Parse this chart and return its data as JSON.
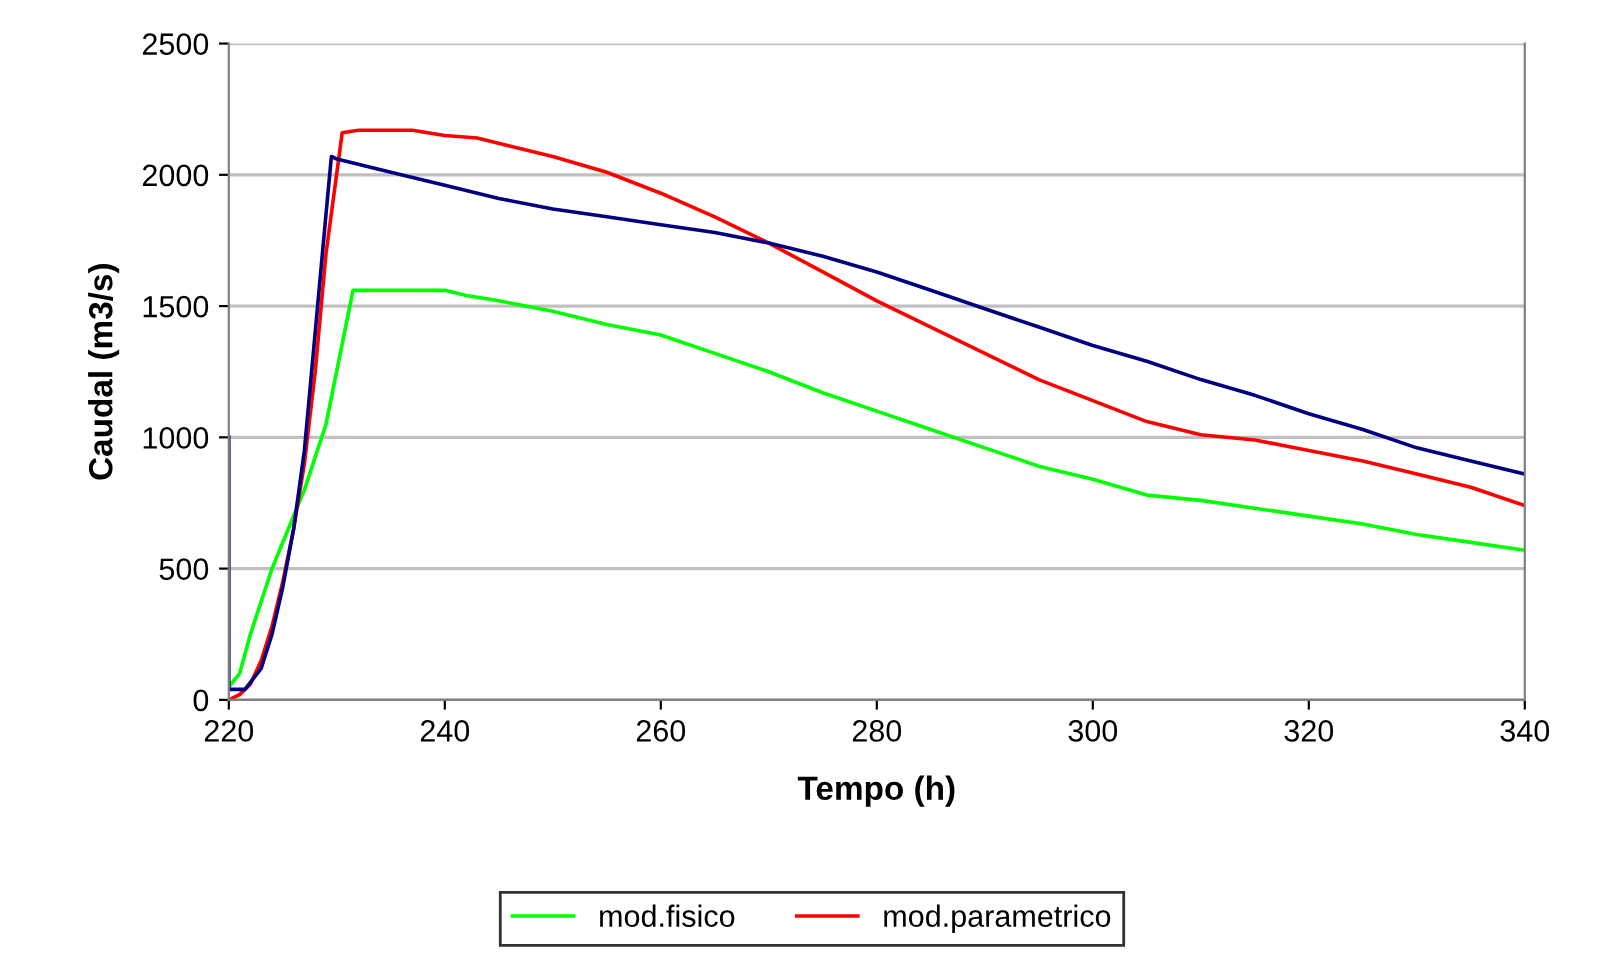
{
  "chart_data": {
    "type": "line",
    "xlabel": "Tempo (h)",
    "ylabel": "Caudal (m3/s)",
    "xlim": [
      220,
      340
    ],
    "xticks": [
      220,
      240,
      260,
      280,
      300,
      320,
      340
    ],
    "ylim": [
      0,
      2500
    ],
    "yticks": [
      0,
      500,
      1000,
      1500,
      2000,
      2500
    ],
    "grid": "y",
    "legend": "bottom",
    "marker": "none",
    "line_style": "solid",
    "series": [
      {
        "name": "mod.fisico",
        "color": "#00ff00",
        "x": [
          220,
          221,
          222,
          224,
          225.5,
          227,
          229,
          231.5,
          240,
          242,
          245,
          250,
          255,
          260,
          265,
          270,
          275,
          280,
          285,
          290,
          295,
          300,
          305,
          310,
          315,
          320,
          325,
          330,
          335,
          340
        ],
        "values": [
          50,
          100,
          250,
          500,
          650,
          800,
          1050,
          1560,
          1560,
          1540,
          1520,
          1480,
          1430,
          1390,
          1320,
          1250,
          1170,
          1100,
          1030,
          960,
          890,
          840,
          780,
          760,
          730,
          700,
          670,
          630,
          600,
          570
        ]
      },
      {
        "name": "mod.parametrico",
        "color": "#ff0000",
        "x": [
          220,
          221,
          222,
          223,
          224,
          225,
          226,
          227,
          228,
          229,
          230.5,
          232,
          237,
          240,
          243,
          246,
          250,
          255,
          260,
          265,
          270,
          275,
          280,
          285,
          290,
          295,
          300,
          305,
          310,
          315,
          320,
          325,
          330,
          335,
          340
        ],
        "values": [
          0,
          20,
          60,
          150,
          280,
          450,
          650,
          900,
          1250,
          1700,
          2160,
          2170,
          2170,
          2150,
          2140,
          2110,
          2070,
          2010,
          1930,
          1840,
          1740,
          1630,
          1520,
          1420,
          1320,
          1220,
          1140,
          1060,
          1010,
          990,
          950,
          910,
          860,
          810,
          740
        ]
      },
      {
        "color": "#000080",
        "x": [
          220,
          220,
          221.5,
          223,
          224,
          225,
          226,
          227,
          228,
          229,
          229.5,
          230,
          235,
          240,
          245,
          250,
          255,
          260,
          265,
          270,
          275,
          280,
          285,
          290,
          295,
          300,
          305,
          310,
          315,
          320,
          325,
          330,
          335,
          340
        ],
        "values": [
          1000,
          40,
          40,
          120,
          250,
          430,
          650,
          950,
          1400,
          1850,
          2070,
          2060,
          2010,
          1960,
          1910,
          1870,
          1840,
          1810,
          1780,
          1740,
          1690,
          1630,
          1560,
          1490,
          1420,
          1350,
          1290,
          1220,
          1160,
          1090,
          1030,
          960,
          910,
          860
        ]
      }
    ]
  }
}
